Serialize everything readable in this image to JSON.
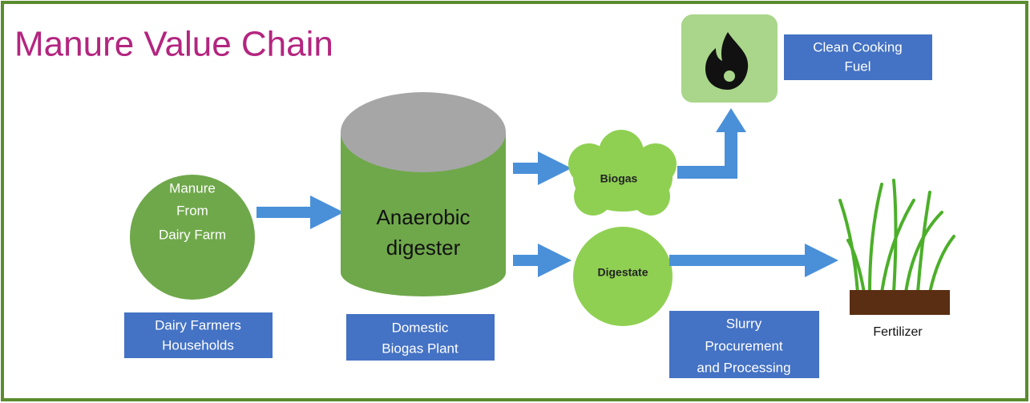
{
  "header": {
    "title": "Manure Value Chain"
  },
  "nodes": [
    {
      "lines": [
        "Manure",
        "From",
        "Dairy Farm"
      ]
    },
    {
      "lines": [
        "Anaerobic",
        "digester"
      ]
    },
    {
      "lines": [
        "Biogas"
      ]
    },
    {
      "lines": [
        "Digestate"
      ]
    },
    {
      "lines": [
        "Clean Cooking",
        "Fuel"
      ]
    },
    {
      "lines": [
        "Fertilizer"
      ]
    }
  ],
  "labels": [
    {
      "lines": [
        "Dairy Farmers",
        "Households"
      ]
    },
    {
      "lines": [
        "Domestic",
        "Biogas Plant"
      ]
    },
    {
      "lines": [
        "Slurry",
        "Procurement",
        "and Processing"
      ]
    }
  ]
}
